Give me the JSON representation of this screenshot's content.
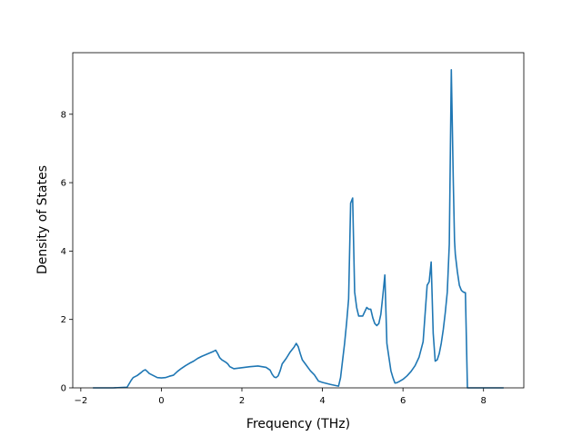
{
  "chart_data": {
    "type": "line",
    "title": "",
    "xlabel": "Frequency (THz)",
    "ylabel": "Density of States",
    "xlim": [
      -2.2,
      9.0
    ],
    "ylim": [
      0,
      9.8
    ],
    "xticks": [
      -2,
      0,
      2,
      4,
      6,
      8
    ],
    "yticks": [
      0,
      2,
      4,
      6,
      8
    ],
    "grid": false,
    "legend": "none",
    "series": [
      {
        "color": "#1f77b4",
        "x": [
          -1.7,
          -1.2,
          -0.85,
          -0.8,
          -0.75,
          -0.7,
          -0.6,
          -0.5,
          -0.45,
          -0.4,
          -0.35,
          -0.3,
          -0.2,
          -0.1,
          0.0,
          0.1,
          0.2,
          0.3,
          0.4,
          0.5,
          0.6,
          0.7,
          0.8,
          0.9,
          1.0,
          1.1,
          1.2,
          1.3,
          1.35,
          1.4,
          1.45,
          1.5,
          1.6,
          1.65,
          1.7,
          1.8,
          2.0,
          2.2,
          2.4,
          2.6,
          2.7,
          2.75,
          2.8,
          2.85,
          2.9,
          2.95,
          3.0,
          3.1,
          3.2,
          3.3,
          3.35,
          3.4,
          3.45,
          3.5,
          3.6,
          3.7,
          3.8,
          3.9,
          4.0,
          4.2,
          4.4,
          4.45,
          4.5,
          4.55,
          4.6,
          4.65,
          4.7,
          4.75,
          4.8,
          4.85,
          4.9,
          5.0,
          5.1,
          5.15,
          5.2,
          5.25,
          5.3,
          5.35,
          5.4,
          5.45,
          5.5,
          5.55,
          5.6,
          5.65,
          5.7,
          5.75,
          5.8,
          5.85,
          5.9,
          6.0,
          6.1,
          6.2,
          6.3,
          6.4,
          6.5,
          6.6,
          6.65,
          6.7,
          6.75,
          6.8,
          6.85,
          6.9,
          6.95,
          7.0,
          7.05,
          7.1,
          7.15,
          7.2,
          7.25,
          7.28,
          7.3,
          7.35,
          7.4,
          7.45,
          7.5,
          7.55,
          7.6,
          7.65,
          7.7,
          7.8,
          8.0,
          8.2,
          8.5
        ],
        "y": [
          0.0,
          0.0,
          0.02,
          0.12,
          0.22,
          0.3,
          0.36,
          0.45,
          0.5,
          0.53,
          0.48,
          0.42,
          0.36,
          0.3,
          0.29,
          0.3,
          0.34,
          0.37,
          0.48,
          0.57,
          0.65,
          0.72,
          0.78,
          0.86,
          0.92,
          0.97,
          1.02,
          1.07,
          1.1,
          1.0,
          0.88,
          0.82,
          0.75,
          0.7,
          0.62,
          0.56,
          0.59,
          0.62,
          0.64,
          0.6,
          0.52,
          0.4,
          0.32,
          0.3,
          0.35,
          0.5,
          0.7,
          0.86,
          1.05,
          1.2,
          1.3,
          1.2,
          1.0,
          0.82,
          0.66,
          0.5,
          0.38,
          0.2,
          0.16,
          0.1,
          0.05,
          0.3,
          0.8,
          1.3,
          1.9,
          2.6,
          5.4,
          5.55,
          2.8,
          2.35,
          2.1,
          2.1,
          2.35,
          2.3,
          2.3,
          2.05,
          1.88,
          1.82,
          1.88,
          2.15,
          2.7,
          3.3,
          1.3,
          0.9,
          0.5,
          0.3,
          0.14,
          0.15,
          0.18,
          0.25,
          0.35,
          0.48,
          0.65,
          0.9,
          1.35,
          3.0,
          3.1,
          3.68,
          1.6,
          0.78,
          0.82,
          1.0,
          1.3,
          1.7,
          2.2,
          2.8,
          4.2,
          9.3,
          6.0,
          4.3,
          3.9,
          3.4,
          3.0,
          2.85,
          2.8,
          2.78,
          0.0,
          0.0,
          0.0,
          0.0,
          0.0,
          0.0,
          0.0
        ]
      }
    ]
  }
}
